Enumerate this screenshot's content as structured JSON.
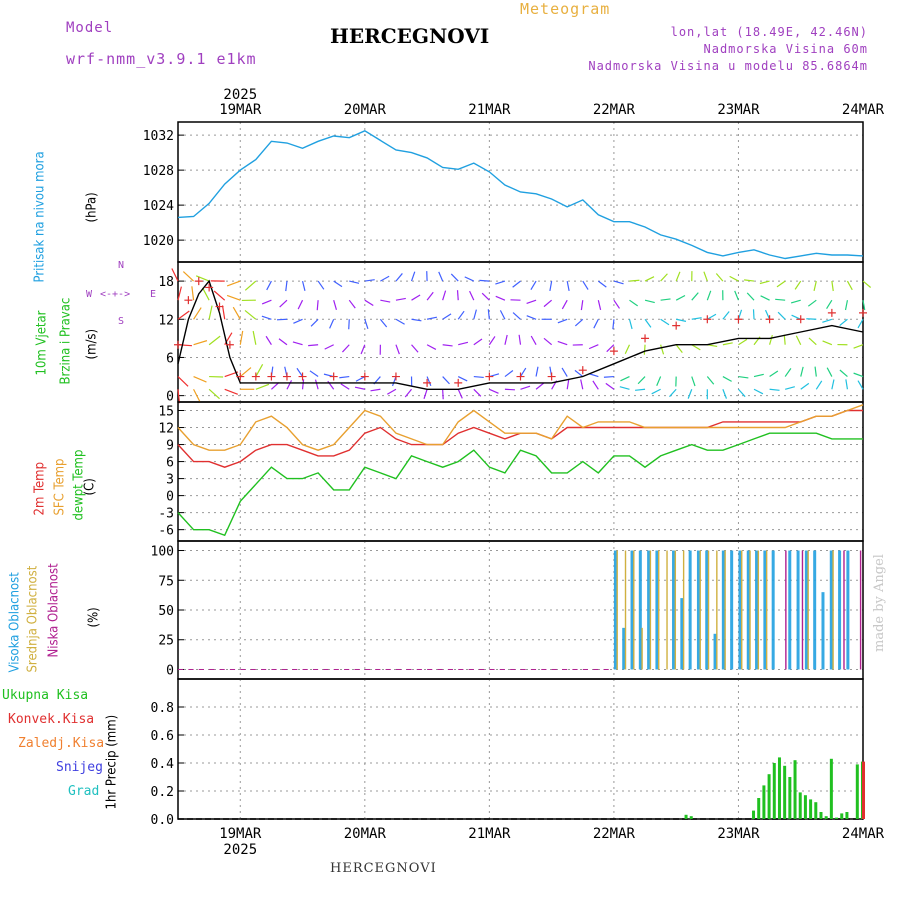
{
  "header": {
    "model_label": "Model",
    "model_name": "wrf-nmm_v3.9.1 e1km",
    "title": "HERCEGNOVI",
    "subtitle": "Meteogram",
    "lonlat": "lon,lat (18.49E, 42.46N)",
    "altitude": "Nadmorska Visina 60m",
    "model_altitude": "Nadmorska Visina u modelu 85.6864m"
  },
  "footer": {
    "station": "HERCEGNOVI",
    "credit": "made by Angel"
  },
  "time_axis": {
    "year": "2025",
    "days": [
      "19MAR",
      "20MAR",
      "21MAR",
      "22MAR",
      "23MAR",
      "24MAR"
    ],
    "start_hour_offset": -12,
    "end_hour": 120
  },
  "colors": {
    "pressure": "#20a0e0",
    "wind_speed": "#000000",
    "wind_gust": "#e03030",
    "temp2m": "#e03030",
    "sfc_temp": "#e8a030",
    "dewpt": "#20c020",
    "cloud_high": "#20a0e0",
    "cloud_mid": "#d0b040",
    "cloud_low": "#b02090",
    "precip_total": "#20c020",
    "precip_conv": "#e03030",
    "precip_frz": "#f08030",
    "snow": "#4040e0",
    "graupel": "#20c0c0"
  },
  "panel_labels": {
    "pressure": {
      "name": "Pritisak na nivou mora",
      "unit": "(hPa)"
    },
    "wind": {
      "name1": "10m Vjetar",
      "name2": "Brzina i Pravac",
      "unit": "(m/s)",
      "compass_n": "N",
      "compass_e": "E",
      "compass_w": "W",
      "compass_s": "S"
    },
    "temp": {
      "name1": "2m Temp",
      "name2": "SFC Temp",
      "name3": "dewpt Temp",
      "unit": "(C)"
    },
    "cloud": {
      "name1": "Visoka Oblacnost",
      "name2": "Srednja Oblacnost",
      "name3": "Niska Oblacnost",
      "unit": "(%)"
    },
    "precip": {
      "l1": "Ukupna Kisa",
      "l2": "Konvek.Kisa",
      "l3": "Zaledj.Kisa",
      "l4": "Snijeg",
      "l5": "Grad",
      "unit": "1hr Precip (mm)"
    }
  },
  "chart_data": [
    {
      "type": "line",
      "name": "pressure",
      "ylabel": "(hPa)",
      "ylim": [
        1017.5,
        1033.5
      ],
      "yticks": [
        1020,
        1024,
        1028,
        1032
      ],
      "x_hours": [
        -12,
        -9,
        -6,
        -3,
        0,
        3,
        6,
        9,
        12,
        15,
        18,
        21,
        24,
        27,
        30,
        33,
        36,
        39,
        42,
        45,
        48,
        51,
        54,
        57,
        60,
        63,
        66,
        69,
        72,
        75,
        78,
        81,
        84,
        87,
        90,
        93,
        96,
        99,
        102,
        105,
        108,
        111,
        114,
        117,
        120
      ],
      "series": [
        {
          "values": [
            1022.6,
            1022.7,
            1024.2,
            1026.4,
            1028.0,
            1029.2,
            1031.3,
            1031.1,
            1030.5,
            1031.3,
            1031.9,
            1031.7,
            1032.5,
            1031.4,
            1030.3,
            1030.0,
            1029.4,
            1028.3,
            1028.1,
            1028.8,
            1027.8,
            1026.3,
            1025.5,
            1025.3,
            1024.7,
            1023.8,
            1024.6,
            1022.9,
            1022.1,
            1022.1,
            1021.5,
            1020.6,
            1020.1,
            1019.4,
            1018.6,
            1018.2,
            1018.6,
            1018.9,
            1018.3,
            1017.9,
            1018.2,
            1018.5,
            1018.3,
            1018.3,
            1018.2
          ]
        }
      ],
      "grid": true
    },
    {
      "type": "line",
      "name": "wind",
      "ylabel": "(m/s)",
      "ylim": [
        -1,
        21
      ],
      "yticks": [
        0,
        6,
        12,
        18
      ],
      "x_hours": [
        -12,
        -10,
        -8,
        -6,
        -4,
        -2,
        0,
        3,
        6,
        9,
        12,
        18,
        24,
        30,
        36,
        42,
        48,
        54,
        60,
        66,
        72,
        78,
        84,
        90,
        96,
        102,
        108,
        114,
        120
      ],
      "series": [
        {
          "name": "speed",
          "values": [
            5,
            12,
            16,
            18,
            13,
            6,
            2,
            2,
            2,
            2,
            2,
            2,
            2,
            2,
            1,
            1,
            2,
            2,
            2,
            3,
            5,
            7,
            8,
            8,
            9,
            9,
            10,
            11,
            10
          ]
        },
        {
          "name": "gust",
          "values": [
            8,
            15,
            18,
            17,
            14,
            8,
            3,
            3,
            3,
            3,
            3,
            3,
            3,
            3,
            2,
            2,
            3,
            3,
            3,
            4,
            7,
            9,
            11,
            12,
            12,
            12,
            12,
            13,
            13
          ]
        }
      ],
      "barb_rows": [
        1,
        3,
        8,
        12,
        15,
        18
      ],
      "grid": true
    },
    {
      "type": "line",
      "name": "temperature",
      "ylabel": "(C)",
      "ylim": [
        -8,
        16.5
      ],
      "yticks": [
        -6,
        -3,
        0,
        3,
        6,
        9,
        12,
        15
      ],
      "x_hours": [
        -12,
        -9,
        -6,
        -3,
        0,
        3,
        6,
        9,
        12,
        15,
        18,
        21,
        24,
        27,
        30,
        33,
        36,
        39,
        42,
        45,
        48,
        51,
        54,
        57,
        60,
        63,
        66,
        69,
        72,
        75,
        78,
        81,
        84,
        87,
        90,
        93,
        96,
        99,
        102,
        105,
        108,
        111,
        114,
        117,
        120
      ],
      "series": [
        {
          "name": "2m Temp",
          "values": [
            9,
            6,
            6,
            5,
            6,
            8,
            9,
            9,
            8,
            7,
            7,
            8,
            11,
            12,
            10,
            9,
            9,
            9,
            11,
            12,
            11,
            10,
            11,
            11,
            10,
            12,
            12,
            12,
            12,
            12,
            12,
            12,
            12,
            12,
            12,
            13,
            13,
            13,
            13,
            13,
            13,
            14,
            14,
            15,
            15
          ]
        },
        {
          "name": "SFC Temp",
          "values": [
            12,
            9,
            8,
            8,
            9,
            13,
            14,
            12,
            9,
            8,
            9,
            12,
            15,
            14,
            11,
            10,
            9,
            9,
            13,
            15,
            13,
            11,
            11,
            11,
            10,
            14,
            12,
            13,
            13,
            13,
            12,
            12,
            12,
            12,
            12,
            12,
            12,
            12,
            12,
            12,
            13,
            14,
            14,
            15,
            16
          ]
        },
        {
          "name": "dewpt Temp",
          "values": [
            -3,
            -6,
            -6,
            -7,
            -1,
            2,
            5,
            3,
            3,
            4,
            1,
            1,
            5,
            4,
            3,
            7,
            6,
            5,
            6,
            8,
            5,
            4,
            8,
            7,
            4,
            4,
            6,
            4,
            7,
            7,
            5,
            7,
            8,
            9,
            8,
            8,
            9,
            10,
            11,
            11,
            11,
            11,
            10,
            10,
            10
          ]
        }
      ],
      "grid": true
    },
    {
      "type": "bar",
      "name": "cloud",
      "ylabel": "(%)",
      "ylim": [
        -8,
        108
      ],
      "yticks": [
        0,
        25,
        50,
        75,
        100
      ],
      "start_hour": 72,
      "end_hour": 120,
      "series": [
        {
          "name": "Visoka Oblacnost",
          "values": [
            100,
            35,
            100,
            100,
            100,
            100,
            0,
            100,
            60,
            100,
            100,
            100,
            30,
            100,
            100,
            100,
            100,
            100,
            100,
            100,
            0,
            100,
            100,
            100,
            100,
            65,
            100,
            100,
            100,
            0
          ]
        },
        {
          "name": "Srednja Oblacnost",
          "values": [
            100,
            100,
            100,
            35,
            100,
            100,
            100,
            100,
            100,
            0,
            100,
            100,
            100,
            100,
            0,
            100,
            100,
            100,
            100,
            0,
            0,
            0,
            0,
            100,
            0,
            0,
            100,
            0,
            0,
            0
          ]
        },
        {
          "name": "Niska Oblacnost",
          "values": [
            0,
            0,
            0,
            0,
            0,
            0,
            0,
            0,
            0,
            0,
            0,
            0,
            0,
            0,
            0,
            0,
            0,
            0,
            0,
            0,
            100,
            0,
            100,
            0,
            0,
            0,
            0,
            100,
            0,
            100
          ]
        }
      ],
      "grid": true
    },
    {
      "type": "bar",
      "name": "precip",
      "ylabel": "1hr Precip (mm)",
      "ylim": [
        0,
        1
      ],
      "yticks": [
        0,
        0.2,
        0.4,
        0.6,
        0.8
      ],
      "x_hours": [
        86,
        87,
        99,
        100,
        101,
        102,
        103,
        104,
        105,
        106,
        107,
        108,
        109,
        110,
        111,
        112,
        113,
        114,
        115,
        116,
        117,
        118,
        119,
        120
      ],
      "series": [
        {
          "name": "Ukupna Kisa",
          "values": [
            0.03,
            0.02,
            0.06,
            0.15,
            0.24,
            0.32,
            0.4,
            0.44,
            0.38,
            0.3,
            0.42,
            0.19,
            0.17,
            0.14,
            0.12,
            0.05,
            0.02,
            0.43,
            0.01,
            0.04,
            0.05,
            0.0,
            0.39,
            0.41
          ]
        },
        {
          "name": "Konvek.Kisa",
          "values": [
            0,
            0,
            0,
            0,
            0,
            0,
            0,
            0,
            0,
            0,
            0,
            0,
            0,
            0,
            0,
            0,
            0,
            0,
            0,
            0,
            0,
            0,
            0,
            0.41
          ]
        }
      ],
      "grid": true
    }
  ]
}
